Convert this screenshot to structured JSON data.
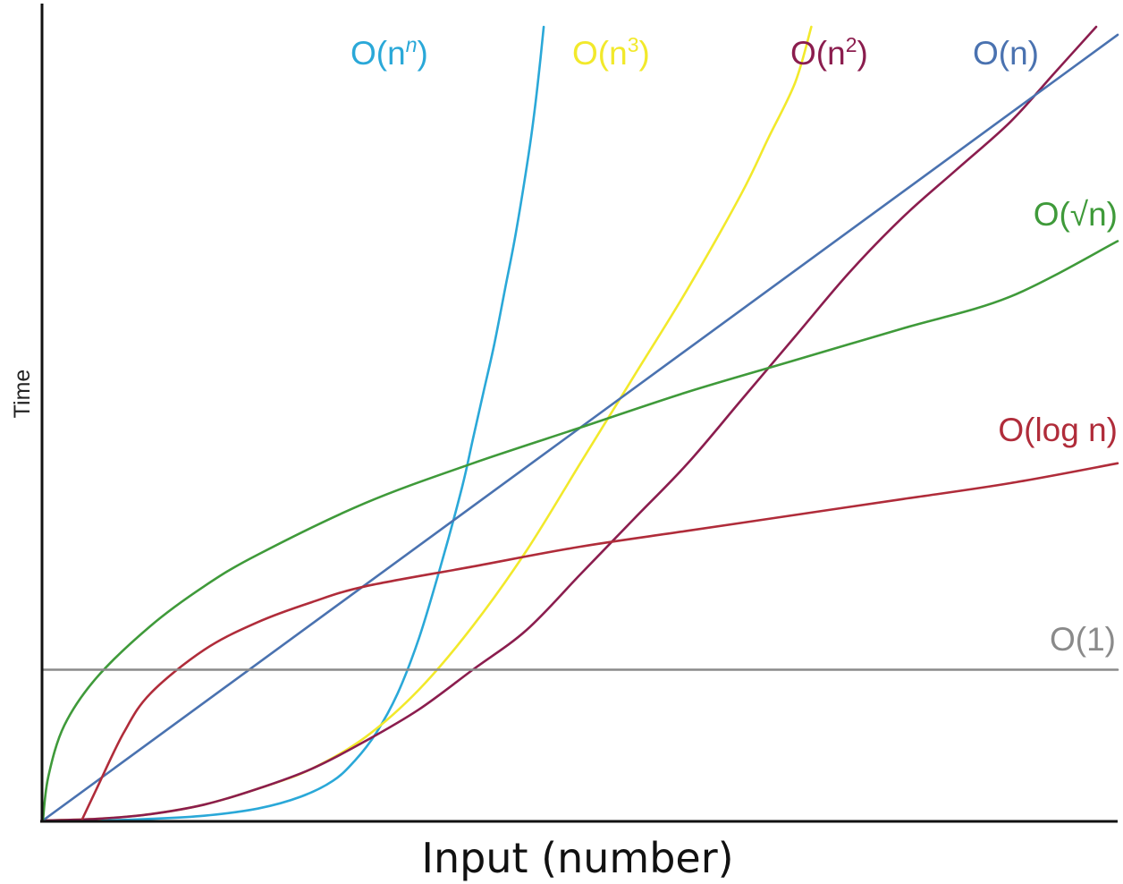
{
  "chart_data": {
    "type": "line",
    "title": "",
    "xlabel": "Input (number)",
    "ylabel": "Time",
    "xlim": [
      0,
      1
    ],
    "ylim": [
      0,
      1
    ],
    "grid": false,
    "legend": "inline labels at curve ends",
    "series": [
      {
        "key": "nn",
        "name": "O(nⁿ)",
        "label_base": "O(n",
        "label_sup": "n",
        "label_end": ")",
        "color": "#2aa8d8",
        "x": [
          0,
          0.05,
          0.1,
          0.15,
          0.2,
          0.24,
          0.27,
          0.29,
          0.31,
          0.33,
          0.35,
          0.37,
          0.39,
          0.4,
          0.41,
          0.42,
          0.43,
          0.44,
          0.452,
          0.458,
          0.463,
          0.466
        ],
        "y": [
          0,
          0,
          0.002,
          0.006,
          0.015,
          0.03,
          0.05,
          0.075,
          0.11,
          0.16,
          0.23,
          0.32,
          0.42,
          0.48,
          0.54,
          0.6,
          0.67,
          0.74,
          0.84,
          0.9,
          0.96,
          1.0
        ]
      },
      {
        "key": "n3",
        "name": "O(n³)",
        "label_base": "O(n",
        "label_sup": "3",
        "label_end": ")",
        "color": "#f2e92b",
        "x": [
          0,
          0.05,
          0.1,
          0.15,
          0.2,
          0.25,
          0.3,
          0.35,
          0.4,
          0.45,
          0.5,
          0.55,
          0.6,
          0.65,
          0.675,
          0.7,
          0.715
        ],
        "y": [
          0,
          0.002,
          0.008,
          0.02,
          0.04,
          0.065,
          0.105,
          0.165,
          0.245,
          0.34,
          0.45,
          0.56,
          0.67,
          0.79,
          0.86,
          0.93,
          1.0
        ]
      },
      {
        "key": "n2",
        "name": "O(n²)",
        "label_base": "O(n",
        "label_sup": "2",
        "label_end": ")",
        "color": "#8b1d4e",
        "x": [
          0,
          0.05,
          0.1,
          0.15,
          0.2,
          0.25,
          0.3,
          0.35,
          0.4,
          0.45,
          0.5,
          0.55,
          0.6,
          0.65,
          0.7,
          0.75,
          0.8,
          0.85,
          0.9,
          0.94,
          0.98
        ],
        "y": [
          0,
          0.002,
          0.008,
          0.02,
          0.04,
          0.065,
          0.1,
          0.14,
          0.19,
          0.24,
          0.31,
          0.38,
          0.45,
          0.53,
          0.61,
          0.69,
          0.76,
          0.82,
          0.88,
          0.94,
          1.0
        ]
      },
      {
        "key": "n",
        "name": "O(n)",
        "label_base": "O(n)",
        "label_sup": "",
        "label_end": "",
        "color": "#4a72b0",
        "x": [
          0,
          1.0
        ],
        "y": [
          0,
          0.99
        ]
      },
      {
        "key": "sqrt",
        "name": "O(√n)",
        "label_base": "O(√n)",
        "label_sup": "",
        "label_end": "",
        "color": "#3f9a3a",
        "x": [
          0,
          0.005,
          0.02,
          0.05,
          0.1,
          0.15,
          0.2,
          0.3,
          0.4,
          0.5,
          0.6,
          0.7,
          0.8,
          0.9,
          1.0
        ],
        "y": [
          0,
          0.055,
          0.12,
          0.18,
          0.245,
          0.295,
          0.335,
          0.4,
          0.45,
          0.495,
          0.54,
          0.58,
          0.62,
          0.66,
          0.73
        ]
      },
      {
        "key": "log",
        "name": "O(log n)",
        "label_base": "O(log n)",
        "label_sup": "",
        "label_end": "",
        "color": "#b02c3a",
        "x": [
          0.036,
          0.05,
          0.075,
          0.1,
          0.15,
          0.2,
          0.25,
          0.3,
          0.4,
          0.5,
          0.6,
          0.7,
          0.8,
          0.9,
          1.0
        ],
        "y": [
          0,
          0.04,
          0.11,
          0.16,
          0.215,
          0.25,
          0.275,
          0.295,
          0.32,
          0.345,
          0.365,
          0.385,
          0.405,
          0.425,
          0.45
        ]
      },
      {
        "key": "const",
        "name": "O(1)",
        "label_base": "O(1)",
        "label_sup": "",
        "label_end": "",
        "color": "#8a8a8a",
        "x": [
          0,
          1.0
        ],
        "y": [
          0.19,
          0.19
        ]
      }
    ]
  }
}
